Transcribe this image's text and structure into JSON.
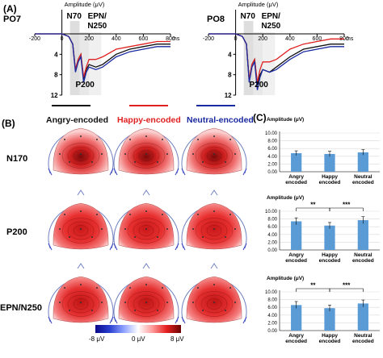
{
  "panels": {
    "A": "(A)",
    "B": "(B)",
    "C": "(C)"
  },
  "erp": {
    "amplitude_label": "Amplitude (μV)",
    "left_channel": "PO7",
    "right_channel": "PO8",
    "time_unit": "ms",
    "x_ticks": [
      "-200",
      "0",
      "200",
      "400",
      "600",
      "800"
    ],
    "y_ticks": [
      "4",
      "8",
      "12"
    ],
    "components": {
      "n70": "N70",
      "epn": "EPN/",
      "n250": "N250",
      "p200": "P200"
    }
  },
  "legend": {
    "angry": "Angry-encoded",
    "happy": "Happy-encoded",
    "neutral": "Neutral-encoded",
    "colors": {
      "angry": "#111111",
      "happy": "#e02020",
      "neutral": "#1a2aa0"
    }
  },
  "topo": {
    "rows": [
      "N170",
      "P200",
      "EPN/N250"
    ],
    "scale": {
      "min": "-8 μV",
      "mid": "0 μV",
      "max": "8 μV"
    }
  },
  "chart_data": [
    {
      "type": "line",
      "title": "PO7",
      "xlabel": "ms",
      "ylabel": "Amplitude (μV)",
      "xlim": [
        -200,
        800
      ],
      "ylim": [
        -1,
        12
      ],
      "y_axis_inverted_display": true,
      "x": [
        -200,
        -100,
        0,
        50,
        80,
        100,
        120,
        140,
        160,
        180,
        200,
        250,
        300,
        400,
        500,
        600,
        700,
        800
      ],
      "series": [
        {
          "name": "Angry-encoded",
          "values": [
            0,
            0,
            0,
            0.5,
            2,
            7,
            5,
            4,
            9,
            7,
            6,
            6.5,
            6,
            4,
            3,
            2.5,
            2,
            2
          ]
        },
        {
          "name": "Happy-encoded",
          "values": [
            0,
            0,
            0,
            0.5,
            2,
            7,
            5,
            4,
            8.5,
            6.5,
            5,
            5,
            4.5,
            3,
            2.5,
            2,
            1.5,
            1.5
          ]
        },
        {
          "name": "Neutral-encoded",
          "values": [
            0,
            0,
            0,
            0.5,
            2,
            7.5,
            5.5,
            4.5,
            9.5,
            7.5,
            6.5,
            7,
            6.5,
            4.5,
            3.5,
            3,
            2.5,
            2.5
          ]
        }
      ]
    },
    {
      "type": "line",
      "title": "PO8",
      "xlabel": "ms",
      "ylabel": "Amplitude (μV)",
      "xlim": [
        -200,
        800
      ],
      "ylim": [
        -1,
        12
      ],
      "y_axis_inverted_display": true,
      "x": [
        -200,
        -100,
        0,
        50,
        80,
        100,
        120,
        140,
        160,
        180,
        200,
        250,
        300,
        400,
        500,
        600,
        700,
        800
      ],
      "series": [
        {
          "name": "Angry-encoded",
          "values": [
            0,
            0,
            0,
            0.5,
            2,
            9,
            6,
            5,
            10,
            8,
            7,
            7.5,
            6.5,
            4.5,
            3,
            2.5,
            2,
            2
          ]
        },
        {
          "name": "Happy-encoded",
          "values": [
            0,
            0,
            0,
            0.5,
            2,
            9,
            6,
            5,
            9.5,
            7,
            5.5,
            5.5,
            5,
            3,
            2,
            1.5,
            1,
            1
          ]
        },
        {
          "name": "Neutral-encoded",
          "values": [
            0,
            0,
            0,
            0.5,
            2,
            9.5,
            6.5,
            5.5,
            11,
            8.5,
            7,
            7.5,
            7,
            5,
            3.5,
            3,
            2.5,
            2.5
          ]
        }
      ]
    },
    {
      "type": "bar",
      "ylabel": "Amplitude (μV)",
      "categories": [
        "Angry encoded",
        "Happy encoded",
        "Neutral encoded"
      ],
      "values": [
        4.8,
        4.6,
        5.0
      ],
      "errors": [
        0.6,
        0.7,
        0.7
      ],
      "ylim": [
        0,
        10
      ],
      "y_ticks": [
        "0.00",
        "2.00",
        "4.00",
        "6.00",
        "8.00",
        "10.00"
      ],
      "color": "#5b9bd5"
    },
    {
      "type": "bar",
      "ylabel": "Amplitude (μV)",
      "categories": [
        "Angry encoded",
        "Happy encoded",
        "Neutral encoded"
      ],
      "values": [
        7.4,
        6.3,
        7.7
      ],
      "errors": [
        0.9,
        0.8,
        0.9
      ],
      "ylim": [
        0,
        10
      ],
      "y_ticks": [
        "0.00",
        "2.00",
        "4.00",
        "6.00",
        "8.00",
        "10.00"
      ],
      "color": "#5b9bd5",
      "significance": [
        {
          "between": [
            "Angry encoded",
            "Happy encoded"
          ],
          "label": "**"
        },
        {
          "between": [
            "Happy encoded",
            "Neutral encoded"
          ],
          "label": "***"
        }
      ]
    },
    {
      "type": "bar",
      "ylabel": "Amplitude (μV)",
      "categories": [
        "Angry encoded",
        "Happy encoded",
        "Neutral encoded"
      ],
      "values": [
        6.6,
        5.8,
        7.0
      ],
      "errors": [
        0.9,
        0.8,
        0.9
      ],
      "ylim": [
        0,
        10
      ],
      "y_ticks": [
        "0.00",
        "2.00",
        "4.00",
        "6.00",
        "8.00",
        "10.00"
      ],
      "color": "#5b9bd5",
      "significance": [
        {
          "between": [
            "Angry encoded",
            "Happy encoded"
          ],
          "label": "**"
        },
        {
          "between": [
            "Happy encoded",
            "Neutral encoded"
          ],
          "label": "***"
        }
      ]
    }
  ]
}
